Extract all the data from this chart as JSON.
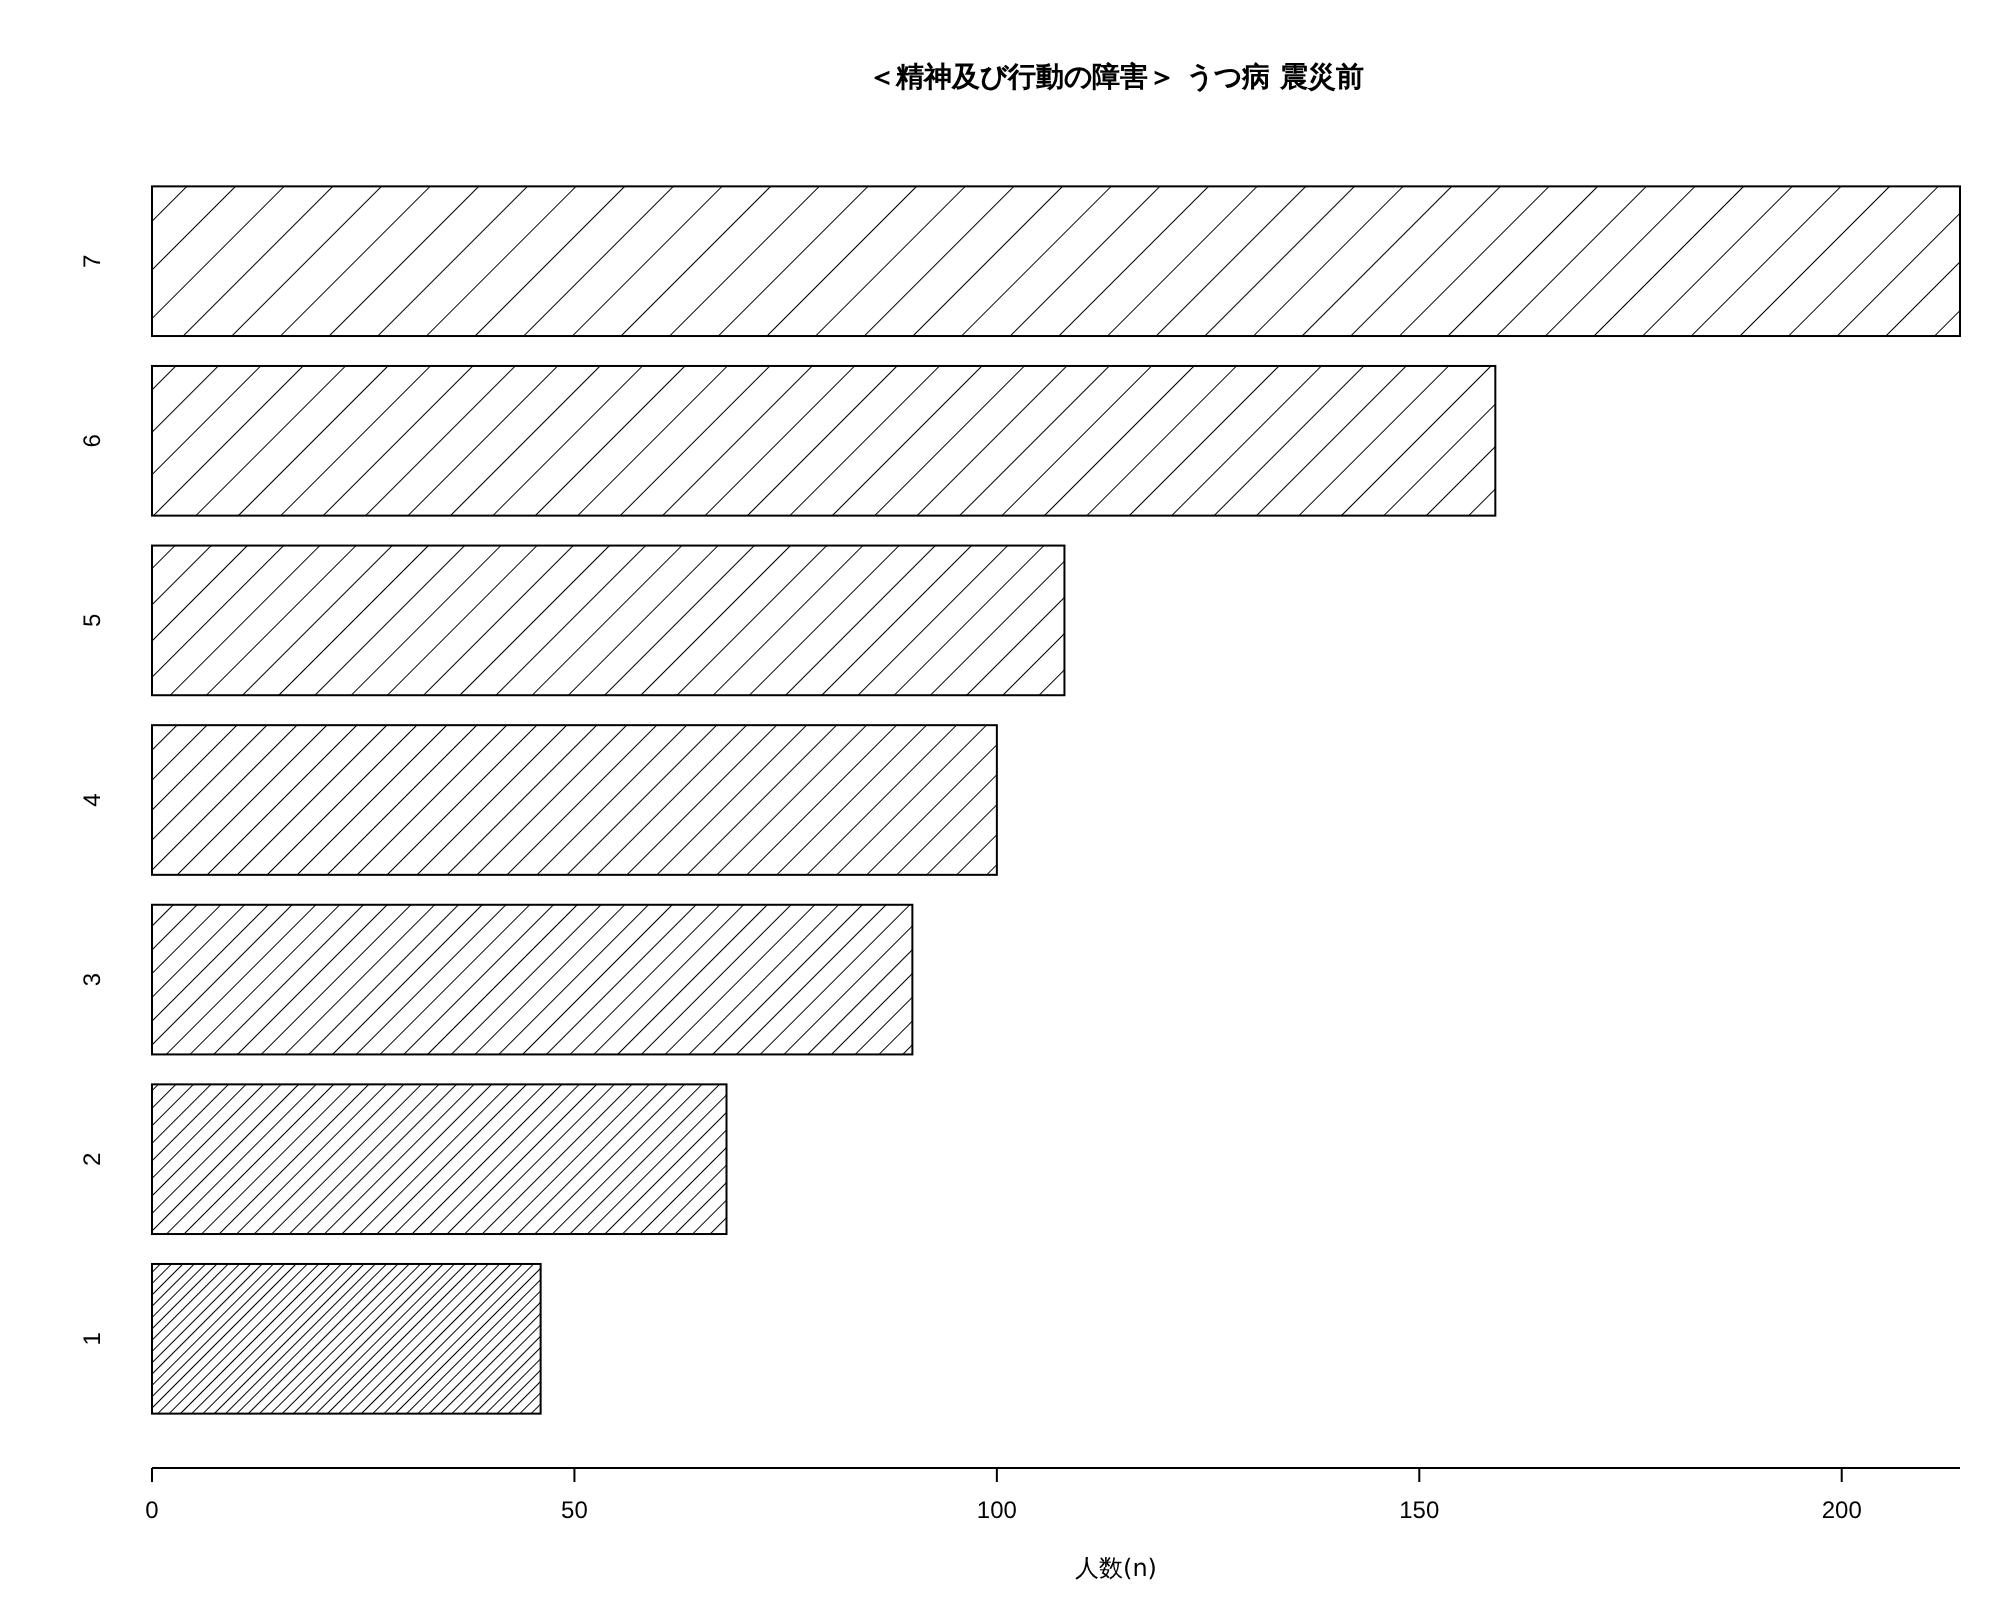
{
  "chart_data": {
    "type": "bar",
    "orientation": "horizontal",
    "title": "＜精神及び行動の障害＞ うつ病 震災前",
    "xlabel": "人数(n)",
    "categories": [
      "7",
      "6",
      "5",
      "4",
      "3",
      "2",
      "1"
    ],
    "values": [
      214,
      159,
      108,
      100,
      90,
      68,
      46
    ],
    "color": "#000000",
    "xlim": [
      0,
      214
    ],
    "xticks": [
      0,
      50,
      100,
      150,
      200
    ],
    "grid": false
  }
}
